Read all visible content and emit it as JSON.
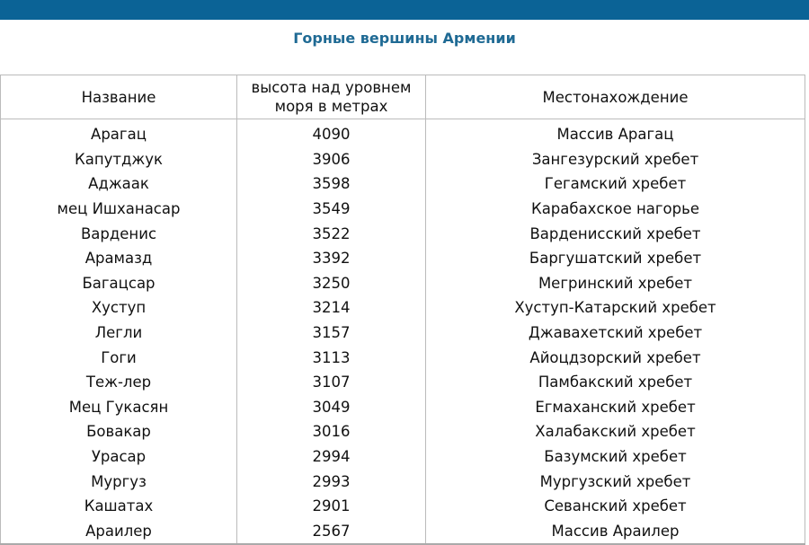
{
  "title": "Горные вершины Армении",
  "colors": {
    "topbar": "#0b6396",
    "title": "#1f6a94"
  },
  "table": {
    "headers": [
      "Название",
      "высота над уровнем моря в метрах",
      "Местонахождение"
    ],
    "rows": [
      [
        "Арагац",
        "4090",
        "Массив Арагац"
      ],
      [
        "Капутджук",
        "3906",
        "Зангезурский хребет"
      ],
      [
        "Аджаак",
        "3598",
        "Гегамский хребет"
      ],
      [
        "мец Ишханасар",
        "3549",
        "Карабахское нагорье"
      ],
      [
        "Варденис",
        "3522",
        "Варденисский хребет"
      ],
      [
        "Арамазд",
        "3392",
        "Баргушатский хребет"
      ],
      [
        "Багацсар",
        "3250",
        "Мегринский хребет"
      ],
      [
        "Хуступ",
        "3214",
        "Хуступ-Катарский хребет"
      ],
      [
        "Легли",
        "3157",
        "Джавахетский хребет"
      ],
      [
        "Гоги",
        "3113",
        "Айоцдзорский хребет"
      ],
      [
        "Теж-лер",
        "3107",
        "Памбакский хребет"
      ],
      [
        "Мец Гукасян",
        "3049",
        "Егмаханский хребет"
      ],
      [
        "Бовакар",
        "3016",
        "Халабакский хребет"
      ],
      [
        "Урасар",
        "2994",
        "Базумский хребет"
      ],
      [
        "Мургуз",
        "2993",
        "Мургузский хребет"
      ],
      [
        "Кашатах",
        "2901",
        "Севанский хребет"
      ],
      [
        "Араилер",
        "2567",
        "Массив Араилер"
      ]
    ]
  }
}
